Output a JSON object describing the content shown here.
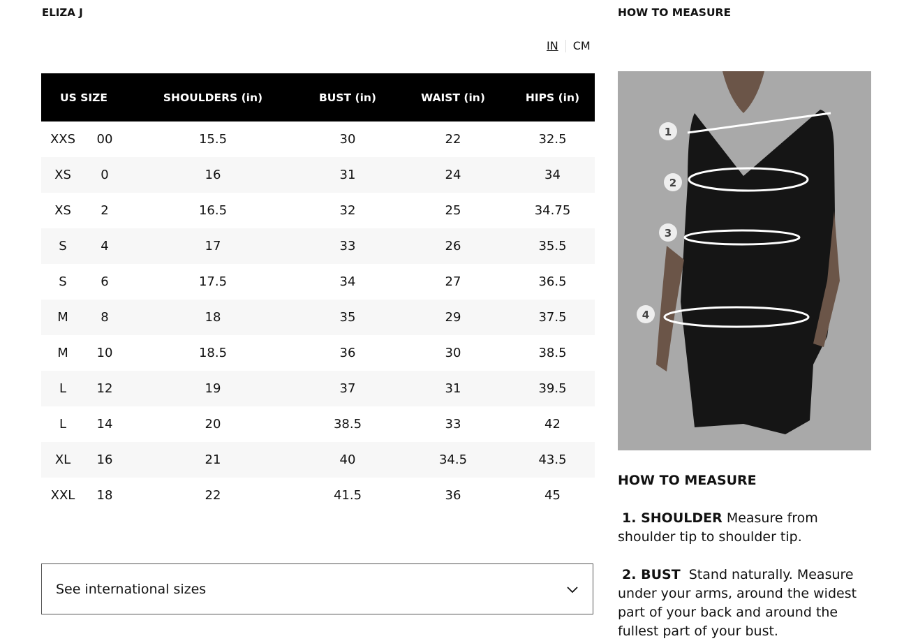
{
  "brand": "ELIZA J",
  "units": {
    "in": "IN",
    "cm": "CM",
    "selected": "IN"
  },
  "table": {
    "headers": [
      "US SIZE",
      "SHOULDERS (in)",
      "BUST (in)",
      "WAIST (in)",
      "HIPS (in)"
    ],
    "rows": [
      [
        "XXS",
        "00",
        "15.5",
        "30",
        "22",
        "32.5"
      ],
      [
        "XS",
        "0",
        "16",
        "31",
        "24",
        "34"
      ],
      [
        "XS",
        "2",
        "16.5",
        "32",
        "25",
        "34.75"
      ],
      [
        "S",
        "4",
        "17",
        "33",
        "26",
        "35.5"
      ],
      [
        "S",
        "6",
        "17.5",
        "34",
        "27",
        "36.5"
      ],
      [
        "M",
        "8",
        "18",
        "35",
        "29",
        "37.5"
      ],
      [
        "M",
        "10",
        "18.5",
        "36",
        "30",
        "38.5"
      ],
      [
        "L",
        "12",
        "19",
        "37",
        "31",
        "39.5"
      ],
      [
        "L",
        "14",
        "20",
        "38.5",
        "33",
        "42"
      ],
      [
        "XL",
        "16",
        "21",
        "40",
        "34.5",
        "43.5"
      ],
      [
        "XXL",
        "18",
        "22",
        "41.5",
        "36",
        "45"
      ]
    ]
  },
  "international": {
    "label": "See international sizes",
    "icon": "chevron-down-icon"
  },
  "right": {
    "heading": "HOW TO MEASURE",
    "image_markers": [
      "1",
      "2",
      "3",
      "4"
    ],
    "measure_heading": "HOW TO MEASURE",
    "steps": [
      {
        "title": "1. SHOULDER",
        "text": "Measure from shoulder tip to shoulder tip."
      },
      {
        "title": "2. BUST",
        "text": "Stand naturally. Measure under your arms, around the widest part of your back and around the fullest part of your bust."
      }
    ]
  }
}
